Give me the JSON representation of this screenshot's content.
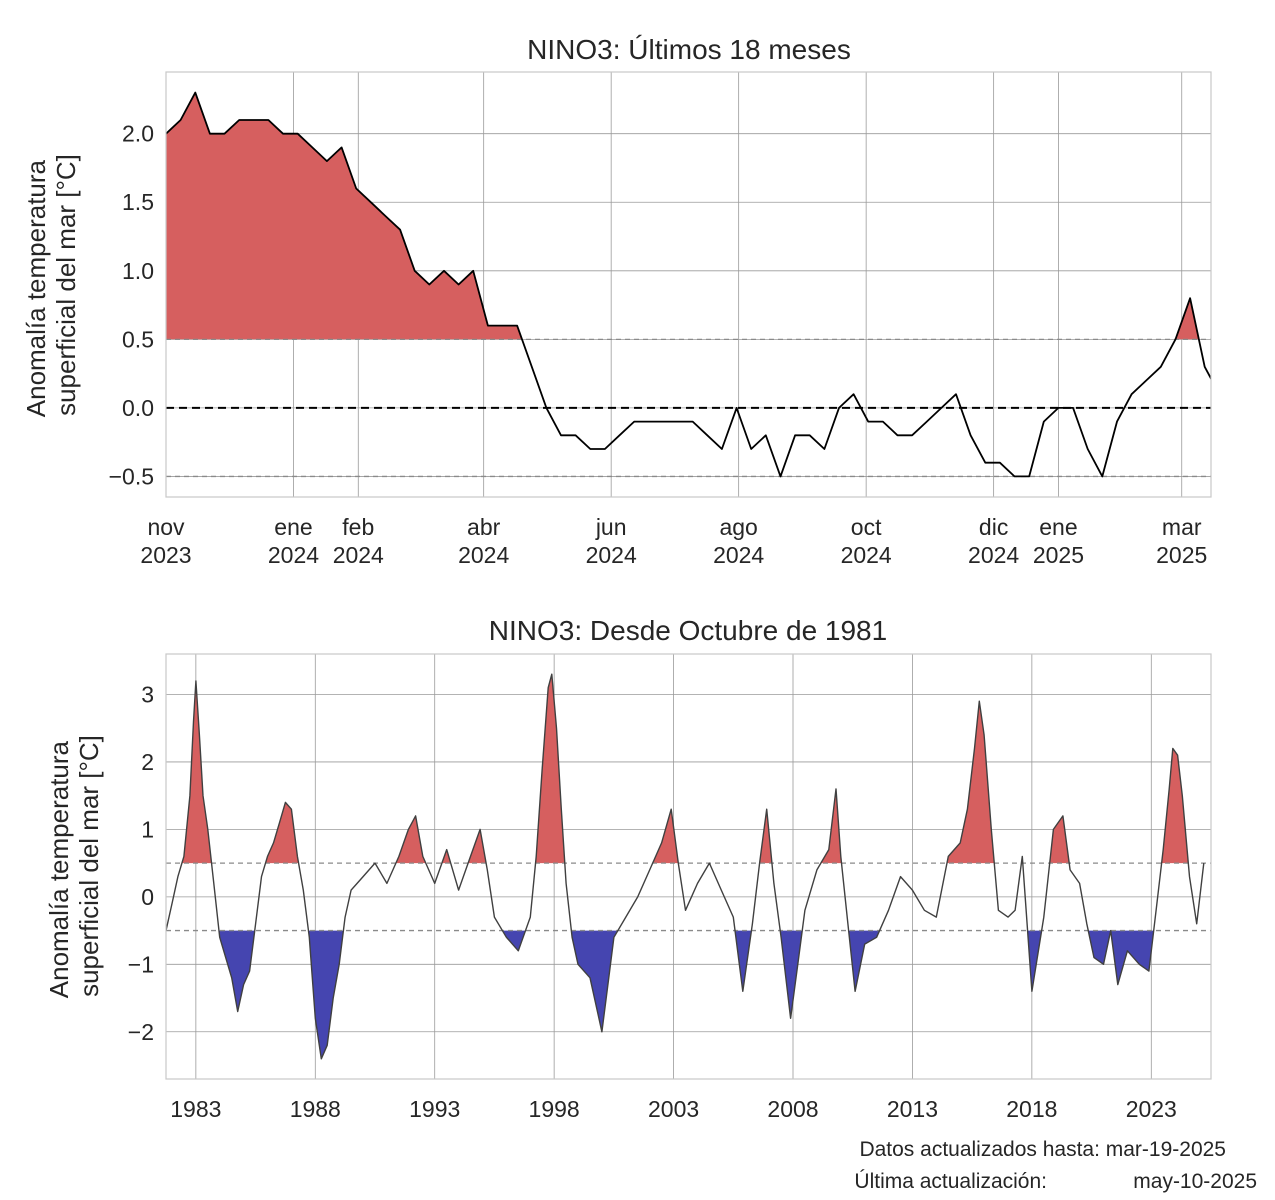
{
  "chart_data": [
    {
      "type": "area",
      "title": "NINO3: Últimos 18 meses",
      "ylabel": [
        "Anomalía temperatura",
        "superficial del mar [°C]"
      ],
      "x_range": [
        "2023-11-01",
        "2025-03-15"
      ],
      "ylim": [
        -0.65,
        2.45
      ],
      "yticks": [
        -0.5,
        0.0,
        0.5,
        1.0,
        1.5,
        2.0
      ],
      "ytick_labels": [
        "−0.5",
        "0.0",
        "0.5",
        "1.0",
        "1.5",
        "2.0"
      ],
      "xticks": [
        {
          "date": "2023-11-01",
          "label": [
            "nov",
            "2023"
          ]
        },
        {
          "date": "2024-01-01",
          "label": [
            "ene",
            "2024"
          ]
        },
        {
          "date": "2024-02-01",
          "label": [
            "feb",
            "2024"
          ]
        },
        {
          "date": "2024-04-01",
          "label": [
            "abr",
            "2024"
          ]
        },
        {
          "date": "2024-06-01",
          "label": [
            "jun",
            "2024"
          ]
        },
        {
          "date": "2024-08-01",
          "label": [
            "ago",
            "2024"
          ]
        },
        {
          "date": "2024-10-01",
          "label": [
            "oct",
            "2024"
          ]
        },
        {
          "date": "2024-12-01",
          "label": [
            "dic",
            "2024"
          ]
        },
        {
          "date": "2025-01-01",
          "label": [
            "ene",
            "2025"
          ]
        },
        {
          "date": "2025-03-01",
          "label": [
            "mar",
            "2025"
          ]
        }
      ],
      "thresholds": [
        0.5,
        -0.5
      ],
      "zero_line": 0.0,
      "grid": true,
      "series": [
        {
          "x": [
            "2023-11-01",
            "2023-11-08",
            "2023-11-15",
            "2023-11-22",
            "2023-11-29",
            "2023-12-06",
            "2023-12-13",
            "2023-12-20",
            "2023-12-27",
            "2024-01-03",
            "2024-01-10",
            "2024-01-17",
            "2024-01-24",
            "2024-01-31",
            "2024-02-07",
            "2024-02-14",
            "2024-02-21",
            "2024-02-28",
            "2024-03-06",
            "2024-03-13",
            "2024-03-20",
            "2024-03-27",
            "2024-04-03",
            "2024-04-10",
            "2024-04-17",
            "2024-04-24",
            "2024-05-01",
            "2024-05-08",
            "2024-05-15",
            "2024-05-22",
            "2024-05-29",
            "2024-06-05",
            "2024-06-12",
            "2024-06-19",
            "2024-06-26",
            "2024-07-03",
            "2024-07-10",
            "2024-07-17",
            "2024-07-24",
            "2024-07-31",
            "2024-08-07",
            "2024-08-14",
            "2024-08-21",
            "2024-08-28",
            "2024-09-04",
            "2024-09-11",
            "2024-09-18",
            "2024-09-25",
            "2024-10-02",
            "2024-10-09",
            "2024-10-16",
            "2024-10-23",
            "2024-10-30",
            "2024-11-06",
            "2024-11-13",
            "2024-11-20",
            "2024-11-27",
            "2024-12-04",
            "2024-12-11",
            "2024-12-18",
            "2024-12-25",
            "2025-01-01",
            "2025-01-08",
            "2025-01-15",
            "2025-01-22",
            "2025-01-29",
            "2025-02-05",
            "2025-02-12",
            "2025-02-19",
            "2025-02-26",
            "2025-03-05",
            "2025-03-12",
            "2025-03-19"
          ],
          "y": [
            2.0,
            2.1,
            2.3,
            2.0,
            2.0,
            2.1,
            2.1,
            2.1,
            2.0,
            2.0,
            1.9,
            1.8,
            1.9,
            1.6,
            1.5,
            1.4,
            1.3,
            1.0,
            0.9,
            1.0,
            0.9,
            1.0,
            0.6,
            0.6,
            0.6,
            0.3,
            0.0,
            -0.2,
            -0.2,
            -0.3,
            -0.3,
            -0.2,
            -0.1,
            -0.1,
            -0.1,
            -0.1,
            -0.1,
            -0.2,
            -0.3,
            0.0,
            -0.3,
            -0.2,
            -0.5,
            -0.2,
            -0.2,
            -0.3,
            0.0,
            0.1,
            -0.1,
            -0.1,
            -0.2,
            -0.2,
            -0.1,
            0.0,
            0.1,
            -0.2,
            -0.4,
            -0.4,
            -0.5,
            -0.5,
            -0.1,
            0.0,
            0.0,
            -0.3,
            -0.5,
            -0.1,
            0.1,
            0.2,
            0.3,
            0.5,
            0.8,
            0.3,
            0.1
          ]
        }
      ]
    },
    {
      "type": "area",
      "title": "NINO3: Desde Octubre de 1981",
      "ylabel": [
        "Anomalía temperatura",
        "superficial del mar [°C]"
      ],
      "x_range": [
        1981.75,
        2025.5
      ],
      "ylim": [
        -2.7,
        3.6
      ],
      "yticks": [
        -2,
        -1,
        0,
        1,
        2,
        3
      ],
      "ytick_labels": [
        "−2",
        "−1",
        "0",
        "1",
        "2",
        "3"
      ],
      "xticks": [
        1983,
        1988,
        1993,
        1998,
        2003,
        2008,
        2013,
        2018,
        2023
      ],
      "thresholds": [
        0.5,
        -0.5
      ],
      "grid": true,
      "series": [
        {
          "x": [
            1981.75,
            1982.0,
            1982.25,
            1982.5,
            1982.75,
            1982.9,
            1983.0,
            1983.15,
            1983.3,
            1983.5,
            1983.75,
            1984.0,
            1984.25,
            1984.5,
            1984.75,
            1985.0,
            1985.25,
            1985.5,
            1985.75,
            1986.0,
            1986.25,
            1986.5,
            1986.75,
            1987.0,
            1987.25,
            1987.5,
            1987.75,
            1988.0,
            1988.25,
            1988.5,
            1988.75,
            1989.0,
            1989.25,
            1989.5,
            1989.75,
            1990.0,
            1990.5,
            1991.0,
            1991.5,
            1991.9,
            1992.2,
            1992.5,
            1993.0,
            1993.5,
            1994.0,
            1994.5,
            1994.9,
            1995.2,
            1995.5,
            1996.0,
            1996.5,
            1997.0,
            1997.25,
            1997.5,
            1997.75,
            1997.9,
            1998.1,
            1998.3,
            1998.5,
            1998.75,
            1999.0,
            1999.5,
            2000.0,
            2000.25,
            2000.5,
            2001.0,
            2001.5,
            2002.0,
            2002.5,
            2002.9,
            2003.2,
            2003.5,
            2004.0,
            2004.5,
            2005.0,
            2005.5,
            2005.9,
            2006.3,
            2006.6,
            2006.9,
            2007.2,
            2007.5,
            2007.9,
            2008.2,
            2008.5,
            2009.0,
            2009.5,
            2009.8,
            2010.0,
            2010.3,
            2010.6,
            2011.0,
            2011.5,
            2012.0,
            2012.5,
            2013.0,
            2013.5,
            2014.0,
            2014.5,
            2015.0,
            2015.3,
            2015.6,
            2015.8,
            2016.0,
            2016.3,
            2016.6,
            2017.0,
            2017.3,
            2017.6,
            2018.0,
            2018.5,
            2018.9,
            2019.3,
            2019.6,
            2020.0,
            2020.3,
            2020.6,
            2021.0,
            2021.3,
            2021.6,
            2022.0,
            2022.5,
            2022.9,
            2023.2,
            2023.5,
            2023.75,
            2023.9,
            2024.1,
            2024.3,
            2024.6,
            2024.9,
            2025.2
          ],
          "y": [
            -0.5,
            -0.1,
            0.3,
            0.6,
            1.5,
            2.6,
            3.2,
            2.4,
            1.5,
            1.0,
            0.2,
            -0.6,
            -0.9,
            -1.2,
            -1.7,
            -1.3,
            -1.1,
            -0.4,
            0.3,
            0.6,
            0.8,
            1.1,
            1.4,
            1.3,
            0.6,
            0.1,
            -0.6,
            -1.8,
            -2.4,
            -2.2,
            -1.5,
            -1.0,
            -0.3,
            0.1,
            0.2,
            0.3,
            0.5,
            0.2,
            0.6,
            1.0,
            1.2,
            0.6,
            0.2,
            0.7,
            0.1,
            0.6,
            1.0,
            0.4,
            -0.3,
            -0.6,
            -0.8,
            -0.3,
            0.6,
            1.9,
            3.1,
            3.3,
            2.5,
            1.3,
            0.2,
            -0.6,
            -1.0,
            -1.2,
            -2.0,
            -1.3,
            -0.6,
            -0.3,
            0.0,
            0.4,
            0.8,
            1.3,
            0.5,
            -0.2,
            0.2,
            0.5,
            0.1,
            -0.3,
            -1.4,
            -0.4,
            0.5,
            1.3,
            0.2,
            -0.6,
            -1.8,
            -1.0,
            -0.2,
            0.4,
            0.7,
            1.6,
            0.6,
            -0.4,
            -1.4,
            -0.7,
            -0.6,
            -0.2,
            0.3,
            0.1,
            -0.2,
            -0.3,
            0.6,
            0.8,
            1.3,
            2.2,
            2.9,
            2.4,
            1.0,
            -0.2,
            -0.3,
            -0.2,
            0.6,
            -1.4,
            -0.3,
            1.0,
            1.2,
            0.4,
            0.2,
            -0.4,
            -0.9,
            -1.0,
            -0.5,
            -1.3,
            -0.8,
            -1.0,
            -1.1,
            -0.2,
            0.7,
            1.6,
            2.2,
            2.1,
            1.5,
            0.3,
            -0.4,
            0.5
          ]
        }
      ]
    }
  ],
  "footer": {
    "line1": "Datos actualizados hasta: mar-19-2025",
    "line2_label": "Última actualización:",
    "line2_value": "may-10-2025"
  },
  "colors": {
    "positive_fill": "#d65f5f",
    "negative_fill": "#4545b0",
    "line_top": "#000000",
    "line_bottom": "#404040",
    "grid": "#9a9a9a",
    "threshold": "#8a8a8a",
    "zero": "#000000"
  }
}
